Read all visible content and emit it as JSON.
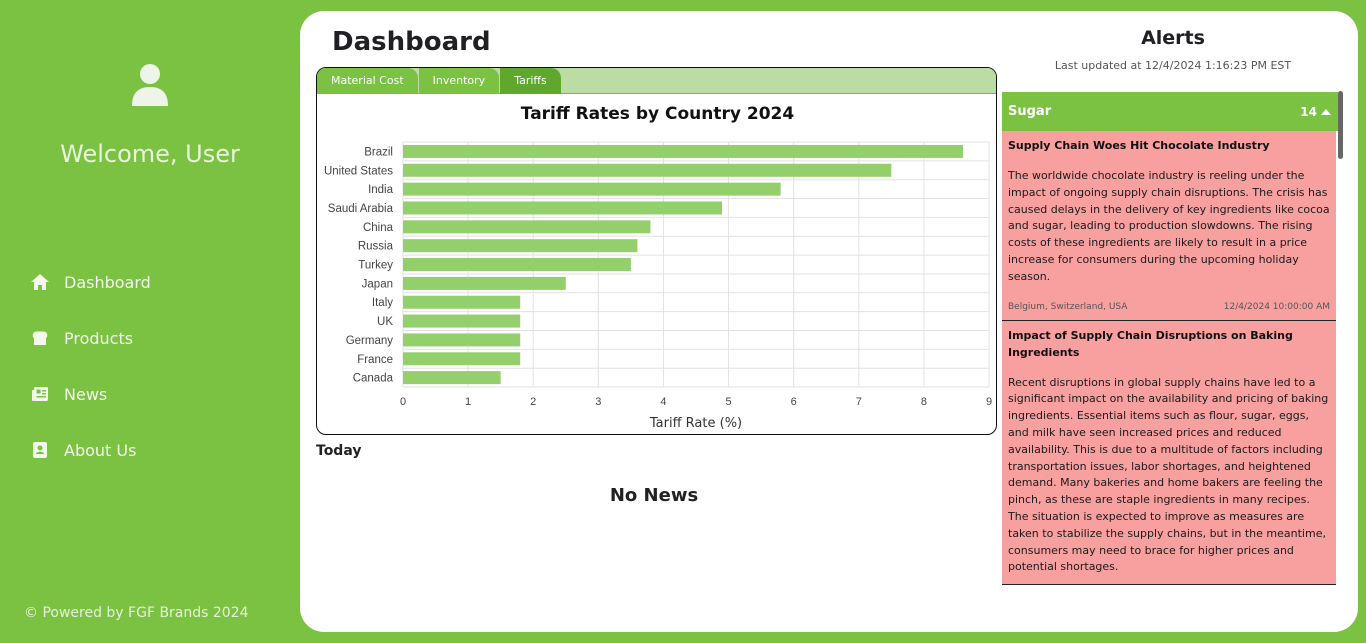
{
  "sidebar": {
    "welcome": "Welcome, User",
    "nav": [
      {
        "label": "Dashboard",
        "icon": "home-icon"
      },
      {
        "label": "Products",
        "icon": "bread-icon"
      },
      {
        "label": "News",
        "icon": "newspaper-icon"
      },
      {
        "label": "About Us",
        "icon": "contact-book-icon"
      }
    ],
    "footer": "© Powered by FGF Brands 2024"
  },
  "main": {
    "title": "Dashboard",
    "tabs": [
      {
        "label": "Material Cost",
        "active": false
      },
      {
        "label": "Inventory",
        "active": false
      },
      {
        "label": "Tariffs",
        "active": true
      }
    ],
    "today_label": "Today",
    "no_news": "No News"
  },
  "chart_data": {
    "type": "bar",
    "orientation": "horizontal",
    "title": "Tariff Rates by Country 2024",
    "xlabel": "Tariff Rate (%)",
    "ylabel": "",
    "categories": [
      "Brazil",
      "United States",
      "India",
      "Saudi Arabia",
      "China",
      "Russia",
      "Turkey",
      "Japan",
      "Italy",
      "UK",
      "Germany",
      "France",
      "Canada"
    ],
    "values": [
      8.6,
      7.5,
      5.8,
      4.9,
      3.8,
      3.6,
      3.5,
      2.5,
      1.8,
      1.8,
      1.8,
      1.8,
      1.5
    ],
    "xlim": [
      0,
      9
    ],
    "ticks": [
      "0",
      "1",
      "2",
      "3",
      "4",
      "5",
      "6",
      "7",
      "8",
      "9"
    ],
    "grid": true,
    "bar_color": "#93cf6a"
  },
  "alerts": {
    "title": "Alerts",
    "updated": "Last updated at 12/4/2024 1:16:23 PM EST",
    "group": {
      "name": "Sugar",
      "count": "14"
    },
    "items": [
      {
        "title": "Supply Chain Woes Hit Chocolate Industry",
        "body": "The worldwide chocolate industry is reeling under the impact of ongoing supply chain disruptions. The crisis has caused delays in the delivery of key ingredients like cocoa and sugar, leading to production slowdowns. The rising costs of these ingredients are likely to result in a price increase for consumers during the upcoming holiday season.",
        "regions": "Belgium, Switzerland, USA",
        "date": "12/4/2024 10:00:00 AM"
      },
      {
        "title": "Impact of Supply Chain Disruptions on Baking Ingredients",
        "body": "Recent disruptions in global supply chains have led to a significant impact on the availability and pricing of baking ingredients. Essential items such as flour, sugar, eggs, and milk have seen increased prices and reduced availability. This is due to a multitude of factors including transportation issues, labor shortages, and heightened demand. Many bakeries and home bakers are feeling the pinch, as these are staple ingredients in many recipes. The situation is expected to improve as measures are taken to stabilize the supply chains, but in the meantime, consumers may need to brace for higher prices and potential shortages."
      }
    ]
  }
}
